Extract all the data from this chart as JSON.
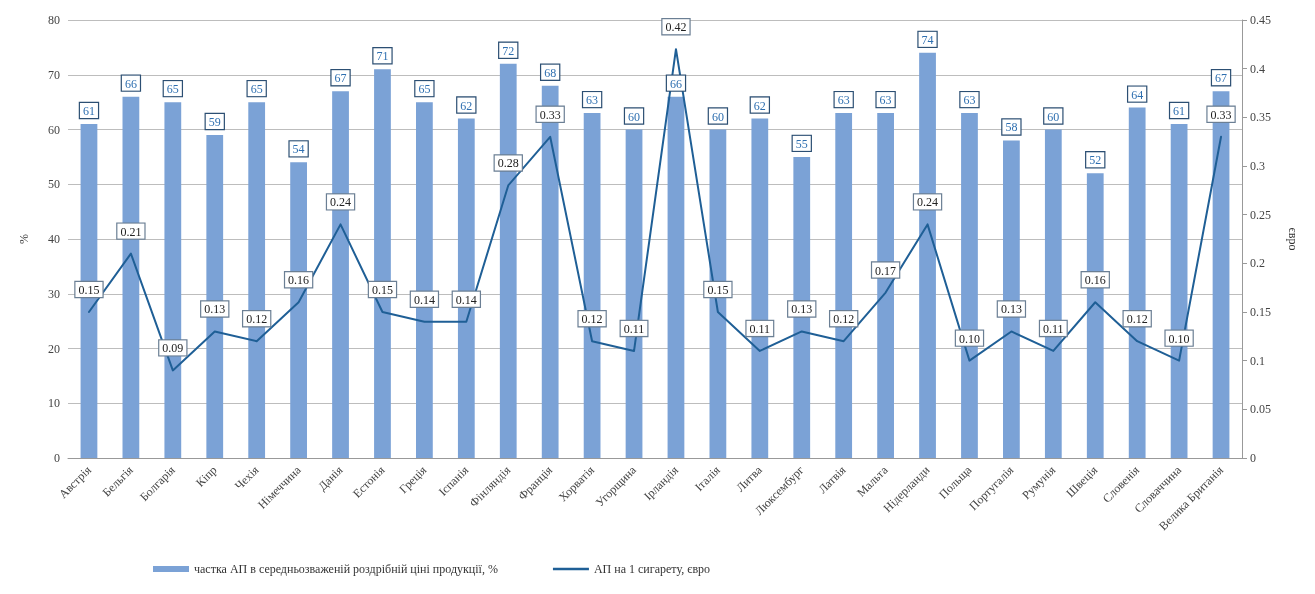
{
  "chart_data": {
    "type": "bar",
    "categories": [
      "Австрія",
      "Бельгія",
      "Болгарія",
      "Кіпр",
      "Чехія",
      "Німеччина",
      "Данія",
      "Естонія",
      "Греція",
      "Іспанія",
      "Фінляндія",
      "Франція",
      "Хорватія",
      "Угорщина",
      "Ірландія",
      "Італія",
      "Литва",
      "Люксембург",
      "Латвія",
      "Мальта",
      "Нідерланди",
      "Польща",
      "Португалія",
      "Румунія",
      "Швеція",
      "Словенія",
      "Словаччина",
      "Велика Британія"
    ],
    "series": [
      {
        "name": "частка АП в середньозваженій роздрібній ціні продукції, %",
        "color": "#7ba2d6",
        "values": [
          61,
          66,
          65,
          59,
          65,
          54,
          67,
          71,
          65,
          62,
          72,
          68,
          63,
          60,
          66,
          60,
          62,
          55,
          63,
          63,
          74,
          63,
          58,
          60,
          52,
          64,
          61,
          67
        ],
        "value_labels": [
          "61",
          "66",
          "65",
          "59",
          "65",
          "54",
          "67",
          "71",
          "65",
          "62",
          "72",
          "68",
          "63",
          "60",
          "66",
          "60",
          "62",
          "55",
          "63",
          "63",
          "74",
          "63",
          "58",
          "60",
          "52",
          "64",
          "61",
          "67"
        ]
      },
      {
        "name": "АП на 1 сигарету, євро",
        "type": "line",
        "axis": "y2",
        "color": "#1f5f96",
        "values": [
          0.15,
          0.21,
          0.09,
          0.13,
          0.12,
          0.16,
          0.24,
          0.15,
          0.14,
          0.14,
          0.28,
          0.33,
          0.12,
          0.11,
          0.42,
          0.15,
          0.11,
          0.13,
          0.12,
          0.17,
          0.24,
          0.1,
          0.13,
          0.11,
          0.16,
          0.12,
          0.1,
          0.33
        ],
        "value_labels": [
          "0.15",
          "0.21",
          "0.09",
          "0.13",
          "0.12",
          "0.16",
          "0.24",
          "0.15",
          "0.14",
          "0.14",
          "0.28",
          "0.33",
          "0.12",
          "0.11",
          "0.42",
          "0.15",
          "0.11",
          "0.13",
          "0.12",
          "0.17",
          "0.24",
          "0.10",
          "0.13",
          "0.11",
          "0.16",
          "0.12",
          "0.10",
          "0.33"
        ]
      }
    ],
    "ylabel": "%",
    "y2label": "євро",
    "ylim": [
      0,
      80
    ],
    "yticks": [
      0,
      10,
      20,
      30,
      40,
      50,
      60,
      70,
      80
    ],
    "y2lim": [
      0,
      0.45
    ],
    "y2ticks": [
      0,
      0.05,
      0.1,
      0.15,
      0.2,
      0.25,
      0.3,
      0.35,
      0.4,
      0.45
    ],
    "grid": "y",
    "legend": "bottom",
    "marker": "none",
    "line_style": "solid"
  }
}
